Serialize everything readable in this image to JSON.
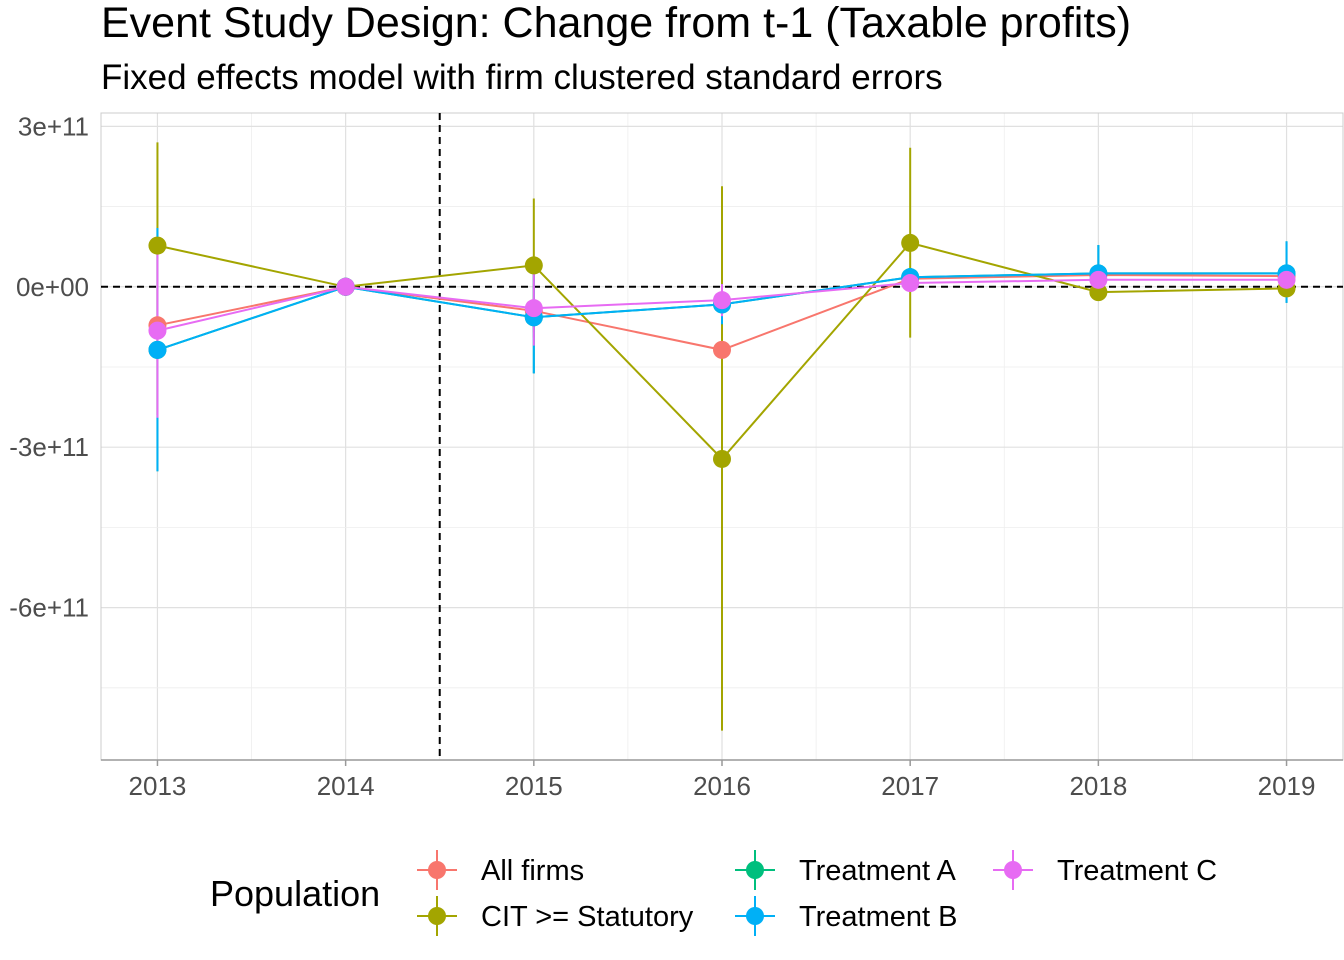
{
  "chart_data": {
    "type": "line",
    "title": "Event Study Design: Change from t-1 (Taxable profits)",
    "subtitle": "Fixed effects model with firm clustered standard errors",
    "xlabel": "",
    "ylabel": "",
    "x": [
      2013,
      2014,
      2015,
      2016,
      2017,
      2018,
      2019
    ],
    "x_tick_labels": [
      "2013",
      "2014",
      "2015",
      "2016",
      "2017",
      "2018",
      "2019"
    ],
    "y_ticks": [
      300000000000,
      0,
      -300000000000,
      -600000000000
    ],
    "y_tick_labels": [
      "3e+11",
      "0e+00",
      "-3e+11",
      "-6e+11"
    ],
    "ylim": [
      -885000000000,
      325000000000
    ],
    "xlim": [
      2012.7,
      2019.3
    ],
    "reference_lines": {
      "vertical_x": 2014.5,
      "horizontal_y": 0,
      "style": "dashed"
    },
    "grid": true,
    "legend": {
      "title": "Population",
      "position": "bottom"
    },
    "series": [
      {
        "name": "All firms",
        "color": "#F8766D",
        "values": [
          -72000000000,
          0,
          -45000000000,
          -118000000000,
          15000000000,
          22000000000,
          20000000000
        ],
        "ci_low": [
          -140000000000,
          0,
          -95000000000,
          -150000000000,
          0,
          5000000000,
          5000000000
        ],
        "ci_high": [
          -5000000000,
          0,
          5000000000,
          -85000000000,
          30000000000,
          40000000000,
          35000000000
        ]
      },
      {
        "name": "CIT >= Statutory",
        "color": "#A3A500",
        "values": [
          77000000000,
          0,
          40000000000,
          -322000000000,
          82000000000,
          -10000000000,
          -3000000000
        ],
        "ci_low": [
          -240000000000,
          0,
          -85000000000,
          -830000000000,
          -95000000000,
          -25000000000,
          -15000000000
        ],
        "ci_high": [
          270000000000,
          0,
          165000000000,
          188000000000,
          260000000000,
          5000000000,
          10000000000
        ]
      },
      {
        "name": "Treatment A",
        "color": "#00BF7D",
        "values": [
          -118000000000,
          0,
          -57000000000,
          -33000000000,
          18000000000,
          25000000000,
          25000000000
        ],
        "ci_low": [
          -345000000000,
          0,
          -162000000000,
          -70000000000,
          0,
          -25000000000,
          -30000000000
        ],
        "ci_high": [
          110000000000,
          0,
          48000000000,
          5000000000,
          35000000000,
          78000000000,
          85000000000
        ]
      },
      {
        "name": "Treatment B",
        "color": "#00B0F6",
        "values": [
          -118000000000,
          0,
          -57000000000,
          -33000000000,
          18000000000,
          25000000000,
          25000000000
        ],
        "ci_low": [
          -345000000000,
          0,
          -162000000000,
          -70000000000,
          0,
          -25000000000,
          -30000000000
        ],
        "ci_high": [
          110000000000,
          0,
          48000000000,
          5000000000,
          35000000000,
          78000000000,
          85000000000
        ]
      },
      {
        "name": "Treatment C",
        "color": "#E76BF3",
        "values": [
          -82000000000,
          0,
          -40000000000,
          -25000000000,
          7000000000,
          13000000000,
          13000000000
        ],
        "ci_low": [
          -245000000000,
          0,
          -110000000000,
          -55000000000,
          -5000000000,
          0,
          0
        ],
        "ci_high": [
          80000000000,
          0,
          30000000000,
          5000000000,
          20000000000,
          25000000000,
          25000000000
        ]
      }
    ]
  }
}
